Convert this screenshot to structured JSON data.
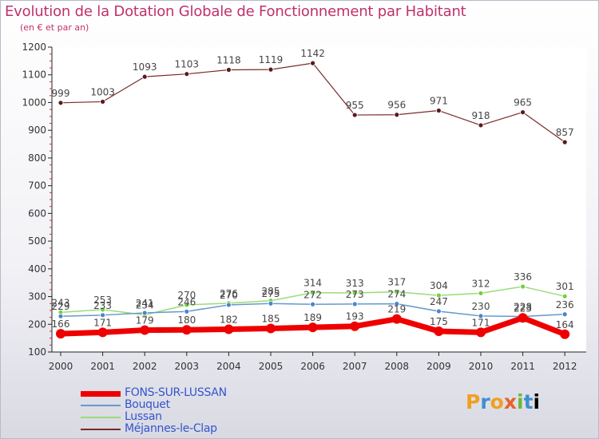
{
  "header": {
    "title": "Evolution de la Dotation Globale de Fonctionnement par Habitant",
    "subtitle": "(en € et par an)"
  },
  "logo": {
    "letters": [
      "P",
      "r",
      "o",
      "x",
      "i",
      "t",
      "i"
    ],
    "text": "Proxiti"
  },
  "chart_data": {
    "type": "line",
    "title": "Evolution de la Dotation Globale de Fonctionnement par Habitant",
    "subtitle": "(en € et par an)",
    "xlabel": "",
    "ylabel": "",
    "x": [
      "2000",
      "2001",
      "2002",
      "2003",
      "2004",
      "2005",
      "2006",
      "2007",
      "2008",
      "2009",
      "2010",
      "2011",
      "2012"
    ],
    "ylim": [
      100,
      1200
    ],
    "yticks": [
      100,
      200,
      300,
      400,
      500,
      600,
      700,
      800,
      900,
      1000,
      1100,
      1200
    ],
    "grid": false,
    "legend_position": "bottom-left",
    "series": [
      {
        "name": "FONS-SUR-LUSSAN",
        "color": "#ee0000",
        "values": [
          166,
          171,
          179,
          180,
          182,
          185,
          189,
          193,
          219,
          175,
          171,
          223,
          164
        ],
        "labels": [
          "166",
          "171",
          "179",
          "180",
          "182",
          "185",
          "189",
          "193",
          "219",
          "175",
          "171",
          "223",
          "164"
        ]
      },
      {
        "name": "Bouquet",
        "color": "#6699cc",
        "values": [
          229,
          233,
          241,
          246,
          270,
          275,
          272,
          273,
          274,
          247,
          230,
          228,
          236
        ],
        "labels": [
          "229",
          "233",
          "241",
          "246",
          "270",
          "275",
          "272",
          "273",
          "274",
          "247",
          "230",
          "228",
          "236"
        ]
      },
      {
        "name": "Lussan",
        "color": "#99dd77",
        "values": [
          243,
          253,
          234,
          270,
          276,
          285,
          314,
          313,
          317,
          304,
          312,
          336,
          301
        ],
        "labels": [
          "243",
          "253",
          "234",
          "270",
          "276",
          "285",
          "314",
          "313",
          "317",
          "304",
          "312",
          "336",
          "301"
        ]
      },
      {
        "name": "Méjannes-le-Clap",
        "color": "#7a2a2a",
        "values": [
          999,
          1003,
          1093,
          1103,
          1118,
          1119,
          1142,
          955,
          956,
          971,
          918,
          965,
          857
        ],
        "labels": [
          "999",
          "1003",
          "1093",
          "1103",
          "1118",
          "1119",
          "1142",
          "955",
          "956",
          "971",
          "918",
          "965",
          "857"
        ]
      }
    ]
  }
}
